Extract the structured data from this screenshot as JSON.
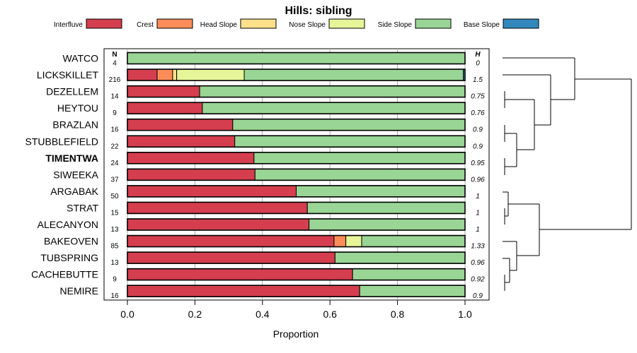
{
  "chart_data": {
    "type": "bar",
    "stacked": true,
    "orientation": "horizontal",
    "title": "Hills: sibling",
    "xlabel": "Proportion",
    "xlim": [
      0,
      1
    ],
    "xticks": [
      "0.0",
      "0.2",
      "0.4",
      "0.6",
      "0.8",
      "1.0"
    ],
    "n_header": "N",
    "h_header": "H",
    "legend_position": "top",
    "series": [
      {
        "name": "Interfluve",
        "color": "#d53e4f"
      },
      {
        "name": "Crest",
        "color": "#fc8d59"
      },
      {
        "name": "Head Slope",
        "color": "#fee08b"
      },
      {
        "name": "Nose Slope",
        "color": "#e6f598"
      },
      {
        "name": "Side Slope",
        "color": "#99d594"
      },
      {
        "name": "Base Slope",
        "color": "#3288bd"
      }
    ],
    "rows": [
      {
        "label": "WATCO",
        "bold": false,
        "n": "4",
        "h": "0",
        "values": [
          0,
          0,
          0,
          0,
          1.0,
          0
        ]
      },
      {
        "label": "LICKSKILLET",
        "bold": false,
        "n": "216",
        "h": "1.5",
        "values": [
          0.088,
          0.046,
          0.012,
          0.2,
          0.649,
          0.005
        ]
      },
      {
        "label": "DEZELLEM",
        "bold": false,
        "n": "14",
        "h": "0.75",
        "values": [
          0.214,
          0,
          0,
          0,
          0.786,
          0
        ]
      },
      {
        "label": "HEYTOU",
        "bold": false,
        "n": "9",
        "h": "0.76",
        "values": [
          0.222,
          0,
          0,
          0,
          0.778,
          0
        ]
      },
      {
        "label": "BRAZLAN",
        "bold": false,
        "n": "16",
        "h": "0.9",
        "values": [
          0.312,
          0,
          0,
          0,
          0.688,
          0
        ]
      },
      {
        "label": "STUBBLEFIELD",
        "bold": false,
        "n": "22",
        "h": "0.9",
        "values": [
          0.318,
          0,
          0,
          0,
          0.682,
          0
        ]
      },
      {
        "label": "TIMENTWA",
        "bold": true,
        "n": "24",
        "h": "0.95",
        "values": [
          0.375,
          0,
          0,
          0,
          0.625,
          0
        ]
      },
      {
        "label": "SIWEEKA",
        "bold": false,
        "n": "37",
        "h": "0.96",
        "values": [
          0.378,
          0,
          0,
          0,
          0.622,
          0
        ]
      },
      {
        "label": "ARGABAK",
        "bold": false,
        "n": "50",
        "h": "1",
        "values": [
          0.5,
          0,
          0,
          0,
          0.5,
          0
        ]
      },
      {
        "label": "STRAT",
        "bold": false,
        "n": "15",
        "h": "1",
        "values": [
          0.533,
          0,
          0,
          0,
          0.467,
          0
        ]
      },
      {
        "label": "ALECANYON",
        "bold": false,
        "n": "13",
        "h": "1",
        "values": [
          0.538,
          0,
          0,
          0,
          0.462,
          0
        ]
      },
      {
        "label": "BAKEOVEN",
        "bold": false,
        "n": "85",
        "h": "1.33",
        "values": [
          0.612,
          0.035,
          0,
          0.047,
          0.306,
          0
        ]
      },
      {
        "label": "TUBSPRING",
        "bold": false,
        "n": "13",
        "h": "0.96",
        "values": [
          0.615,
          0,
          0,
          0,
          0.385,
          0
        ]
      },
      {
        "label": "CACHEBUTTE",
        "bold": false,
        "n": "9",
        "h": "0.92",
        "values": [
          0.667,
          0,
          0,
          0,
          0.333,
          0
        ]
      },
      {
        "label": "NEMIRE",
        "bold": false,
        "n": "16",
        "h": "0.9",
        "values": [
          0.688,
          0,
          0,
          0,
          0.312,
          0
        ]
      }
    ]
  }
}
